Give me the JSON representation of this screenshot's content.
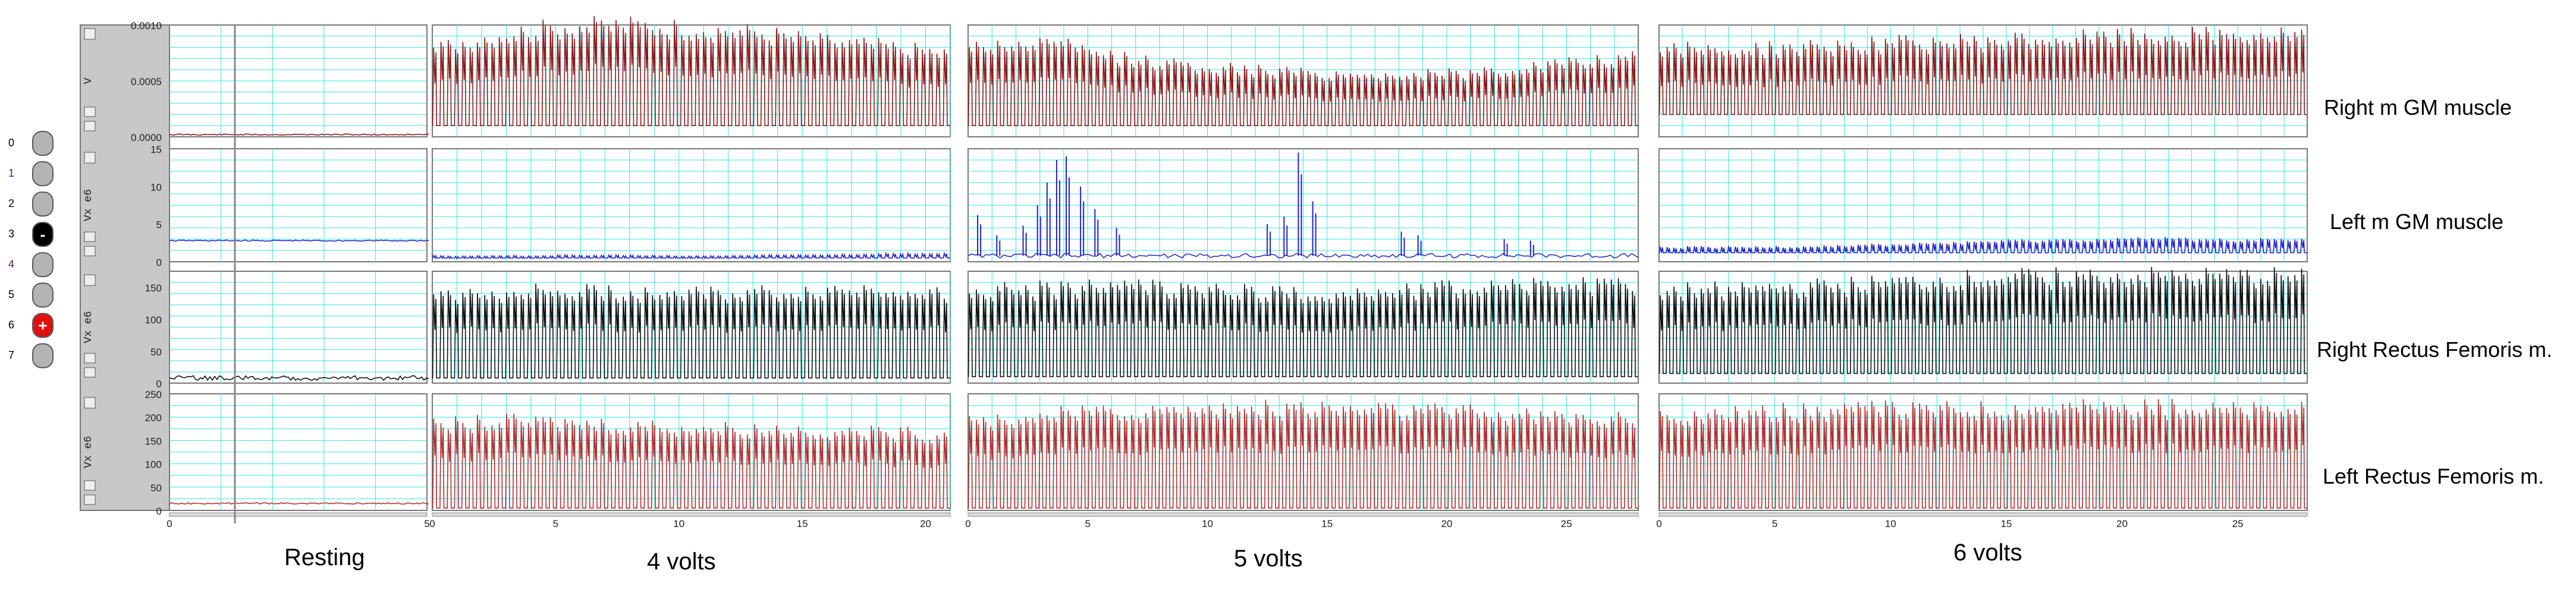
{
  "channels": {
    "numbers": [
      "0",
      "1",
      "2",
      "3",
      "4",
      "5",
      "6",
      "7"
    ],
    "minus_symbol": "-",
    "plus_symbol": "+",
    "number_colors": [
      "#000000",
      "#5a1a7a",
      "#000000",
      "#000000",
      "#5a1a7a",
      "#000000",
      "#000000",
      "#000000"
    ]
  },
  "axis_units": [
    "V",
    "Vx e6",
    "Vx e6",
    "Vx e6"
  ],
  "row_labels": [
    "Right m GM muscle",
    "Left m GM muscle",
    "Right Rectus Femoris m.",
    "Left Rectus Femoris m."
  ],
  "segment_labels": [
    "Resting",
    "4 volts",
    "5 volts",
    "6 volts"
  ],
  "colors": {
    "row_colors": [
      "#8b1a1a",
      "#2222cc",
      "#111111",
      "#b03030"
    ],
    "grid": "#37e3ec",
    "frame": "#777777",
    "axis_panel": "#c8c8c8"
  },
  "chart_data": [
    {
      "type": "line",
      "title": "",
      "layout": "4 rows (muscles) x 4 segments (stimulation levels)",
      "rows": [
        {
          "label": "Right m GM muscle",
          "unit": "V",
          "ylim": [
            0,
            0.001
          ],
          "yticks": [
            "0.0000",
            "0.0005",
            "0.0010"
          ]
        },
        {
          "label": "Left m GM muscle",
          "unit": "Vx e6",
          "ylim": [
            0,
            15
          ],
          "yticks": [
            "0",
            "5",
            "10",
            "15"
          ]
        },
        {
          "label": "Right Rectus Femoris m.",
          "unit": "Vx e6",
          "ylim": [
            0,
            175
          ],
          "yticks": [
            "0",
            "50",
            "100",
            "150"
          ]
        },
        {
          "label": "Left Rectus Femoris m.",
          "unit": "Vx e6",
          "ylim": [
            0,
            250
          ],
          "yticks": [
            "0",
            "50",
            "100",
            "150",
            "200",
            "250"
          ]
        }
      ],
      "segments": [
        {
          "label": "Resting",
          "xlim": [
            0,
            5
          ],
          "xticks": [
            "0",
            "5"
          ],
          "series": [
            {
              "row": 0,
              "baseline": 2e-05,
              "peaks": []
            },
            {
              "row": 1,
              "baseline": 2.8,
              "peaks": []
            },
            {
              "row": 2,
              "baseline": 8,
              "peaks": []
            },
            {
              "row": 3,
              "baseline": 15,
              "peaks": []
            }
          ]
        },
        {
          "label": "4 volts",
          "xlim": [
            0,
            21
          ],
          "xticks": [
            "0",
            "5",
            "10",
            "15",
            "20"
          ],
          "series": [
            {
              "row": 0,
              "baseline": 0.0001,
              "envelope": [
                0.00082,
                0.00095,
                0.00103,
                0.00105,
                0.00102,
                0.00098,
                0.0009,
                0.00085,
                0.00078
              ]
            },
            {
              "row": 1,
              "baseline": 0.5,
              "envelope": [
                0.8,
                0.8,
                0.9,
                0.9,
                0.8,
                0.9,
                1.0,
                1.1,
                1.2
              ]
            },
            {
              "row": 2,
              "baseline": 8,
              "envelope": [
                145,
                150,
                152,
                150,
                145,
                148,
                152,
                155,
                150
              ]
            },
            {
              "row": 3,
              "baseline": 5,
              "envelope": [
                190,
                200,
                198,
                192,
                186,
                183,
                180,
                175,
                170
              ]
            }
          ]
        },
        {
          "label": "5 volts",
          "xlim": [
            0,
            28
          ],
          "xticks": [
            "0",
            "5",
            "10",
            "15",
            "20",
            "25"
          ],
          "series": [
            {
              "row": 0,
              "baseline": 0.0001,
              "envelope": [
                0.00085,
                0.00088,
                0.00072,
                0.00065,
                0.0006,
                0.00058,
                0.0006,
                0.00068,
                0.00074
              ]
            },
            {
              "row": 1,
              "baseline": 0.8,
              "peaks": [
                [
                  0.4,
                  6.2
                ],
                [
                  1.2,
                  3.5
                ],
                [
                  2.3,
                  4.8
                ],
                [
                  2.9,
                  7.5
                ],
                [
                  3.3,
                  10.5
                ],
                [
                  3.7,
                  13.5
                ],
                [
                  4.1,
                  14.0
                ],
                [
                  4.7,
                  10.0
                ],
                [
                  5.3,
                  7.0
                ],
                [
                  6.2,
                  4.5
                ],
                [
                  12.5,
                  5.0
                ],
                [
                  13.2,
                  6.0
                ],
                [
                  13.8,
                  14.5
                ],
                [
                  14.4,
                  8.0
                ],
                [
                  18.1,
                  4.0
                ],
                [
                  18.8,
                  3.5
                ],
                [
                  22.4,
                  3.0
                ],
                [
                  23.5,
                  2.8
                ]
              ]
            },
            {
              "row": 2,
              "baseline": 10,
              "envelope": [
                150,
                155,
                160,
                155,
                145,
                150,
                160,
                165,
                160
              ]
            },
            {
              "row": 3,
              "baseline": 5,
              "envelope": [
                200,
                215,
                222,
                228,
                230,
                226,
                220,
                210,
                205
              ]
            }
          ]
        },
        {
          "label": "6 volts",
          "xlim": [
            0,
            28
          ],
          "xticks": [
            "0",
            "5",
            "10",
            "15",
            "20",
            "25"
          ],
          "series": [
            {
              "row": 0,
              "baseline": 0.0002,
              "envelope": [
                0.00082,
                0.00082,
                0.00085,
                0.00088,
                0.0009,
                0.00092,
                0.00094,
                0.00095,
                0.00096
              ]
            },
            {
              "row": 1,
              "baseline": 1.2,
              "envelope": [
                2.0,
                2.0,
                2.2,
                2.4,
                2.8,
                3.0,
                3.2,
                3.1,
                3.0
              ]
            },
            {
              "row": 2,
              "baseline": 15,
              "envelope": [
                150,
                155,
                158,
                165,
                172,
                175,
                175,
                175,
                175
              ]
            },
            {
              "row": 3,
              "baseline": 5,
              "envelope": [
                215,
                220,
                225,
                228,
                230,
                235,
                232,
                228,
                225
              ]
            }
          ]
        }
      ]
    }
  ]
}
